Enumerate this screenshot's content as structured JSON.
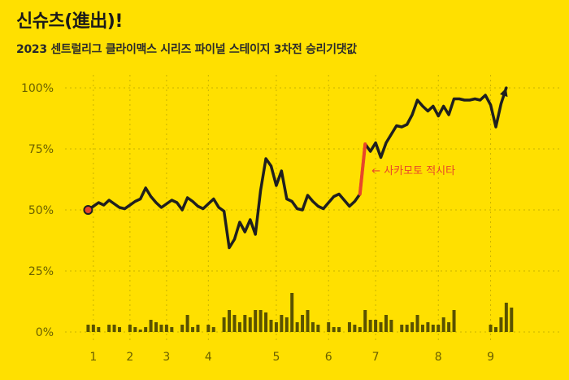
{
  "chart_data": {
    "type": "line",
    "title": "신슈츠(進出)!",
    "subtitle": "2023 센트럴리그 클라이맥스 시리즈 파이널 스테이지 3차전 승리기댓값",
    "ylim": [
      0,
      1
    ],
    "y_ticks": [
      {
        "value": 0,
        "label": "0%"
      },
      {
        "value": 0.25,
        "label": "25%"
      },
      {
        "value": 0.5,
        "label": "50%"
      },
      {
        "value": 0.75,
        "label": "75%"
      },
      {
        "value": 1,
        "label": "100%"
      }
    ],
    "x_ticks": [
      {
        "value": 1,
        "label": "1"
      },
      {
        "value": 8,
        "label": "2"
      },
      {
        "value": 15,
        "label": "3"
      },
      {
        "value": 23,
        "label": "4"
      },
      {
        "value": 36,
        "label": "5"
      },
      {
        "value": 46,
        "label": "6"
      },
      {
        "value": 55,
        "label": "7"
      },
      {
        "value": 67,
        "label": "8"
      },
      {
        "value": 77,
        "label": "9"
      }
    ],
    "xlim": [
      -1,
      85
    ],
    "series": [
      {
        "values": [
          0.5,
          0.515,
          0.53,
          0.52,
          0.54,
          0.525,
          0.51,
          0.505,
          0.52,
          0.535,
          0.545,
          0.59,
          0.555,
          0.53,
          0.51,
          0.525,
          0.54,
          0.53,
          0.5,
          0.55,
          0.535,
          0.515,
          0.505,
          0.525,
          0.545,
          0.51,
          0.495,
          0.345,
          0.38,
          0.45,
          0.41,
          0.46,
          0.4,
          0.58,
          0.71,
          0.68,
          0.6,
          0.66,
          0.545,
          0.535,
          0.505,
          0.5,
          0.56,
          0.535,
          0.515,
          0.505,
          0.53,
          0.555,
          0.565,
          0.54,
          0.515,
          0.535,
          0.565,
          0.77,
          0.74,
          0.775,
          0.715,
          0.775,
          0.81,
          0.845,
          0.84,
          0.85,
          0.89,
          0.95,
          0.925,
          0.905,
          0.925,
          0.885,
          0.925,
          0.89,
          0.955,
          0.955,
          0.95,
          0.95,
          0.955,
          0.95,
          0.97,
          0.93,
          0.84,
          0.935,
          1.0
        ]
      }
    ],
    "highlight": {
      "from_index": 52,
      "to_index": 53,
      "color": "#e8462a",
      "label": "← 사카모토 적시타"
    },
    "bars": {
      "values": [
        0.03,
        0.03,
        0.02,
        0.0,
        0.03,
        0.03,
        0.02,
        0.0,
        0.03,
        0.02,
        0.01,
        0.02,
        0.05,
        0.04,
        0.03,
        0.03,
        0.02,
        0.0,
        0.03,
        0.07,
        0.02,
        0.03,
        0.0,
        0.03,
        0.02,
        0.0,
        0.06,
        0.09,
        0.07,
        0.04,
        0.07,
        0.06,
        0.09,
        0.09,
        0.08,
        0.05,
        0.04,
        0.07,
        0.06,
        0.16,
        0.04,
        0.07,
        0.09,
        0.04,
        0.03,
        0.0,
        0.04,
        0.02,
        0.02,
        0.0,
        0.04,
        0.03,
        0.02,
        0.09,
        0.05,
        0.05,
        0.04,
        0.07,
        0.05,
        0.0,
        0.03,
        0.03,
        0.04,
        0.07,
        0.03,
        0.04,
        0.03,
        0.03,
        0.06,
        0.04,
        0.09,
        0.0,
        0.0,
        0.0,
        0.0,
        0.0,
        0.0,
        0.03,
        0.02,
        0.06,
        0.12,
        0.1
      ],
      "color": "#5a5200"
    },
    "grid": true,
    "colors": {
      "line": "#1f1f1f",
      "start_marker": "#e8462a",
      "grid": "#c9b200"
    }
  }
}
